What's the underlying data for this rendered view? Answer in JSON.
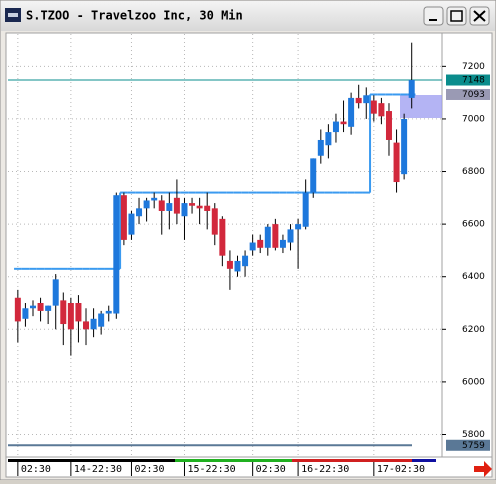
{
  "title": "S.TZOO - Travelzoo Inc, 30 Min",
  "chart_data": {
    "type": "candlestick",
    "up_color": "#1e78dc",
    "down_color": "#d2283c",
    "xlim": [
      -1.3,
      56
    ],
    "ylim": [
      5722,
      7323
    ],
    "yticks": [
      5800,
      6000,
      6200,
      6400,
      6600,
      6800,
      7000,
      7200
    ],
    "xticks": [
      {
        "value": 2,
        "label": "02:30"
      },
      {
        "value": 9,
        "label": "14-22:30"
      },
      {
        "value": 17,
        "label": "02:30"
      },
      {
        "value": 24,
        "label": "15-22:30"
      },
      {
        "value": 33,
        "label": "02:30"
      },
      {
        "value": 39,
        "label": "16-22:30"
      },
      {
        "value": 49,
        "label": "17-02:30"
      }
    ],
    "grid": true,
    "open": [
      6320,
      6240,
      6280,
      6300,
      6270,
      6290,
      6310,
      6300,
      6300,
      6230,
      6200,
      6210,
      6260,
      6260,
      6710,
      6560,
      6630,
      6660,
      6690,
      6690,
      6650,
      6700,
      6630,
      6680,
      6670,
      6670,
      6660,
      6620,
      6460,
      6420,
      6440,
      6500,
      6540,
      6510,
      6600,
      6510,
      6530,
      6580,
      6590,
      6720,
      6860,
      6900,
      6950,
      6990,
      6970,
      7080,
      7060,
      7070,
      7060,
      7030,
      6910,
      6790,
      7080
    ],
    "high": [
      6350,
      6300,
      6310,
      6320,
      6290,
      6410,
      6340,
      6320,
      6330,
      6280,
      6280,
      6270,
      6290,
      6720,
      6720,
      6650,
      6700,
      6700,
      6720,
      6710,
      6720,
      6770,
      6700,
      6700,
      6700,
      6720,
      6680,
      6630,
      6500,
      6480,
      6500,
      6560,
      6560,
      6600,
      6620,
      6560,
      6600,
      6620,
      6770,
      6850,
      6960,
      6980,
      7020,
      7070,
      7100,
      7130,
      7120,
      7090,
      7080,
      7060,
      6960,
      7020,
      7290
    ],
    "low": [
      6150,
      6210,
      6250,
      6230,
      6220,
      6200,
      6140,
      6100,
      6150,
      6140,
      6170,
      6180,
      6230,
      6240,
      6520,
      6540,
      6600,
      6610,
      6660,
      6560,
      6580,
      6600,
      6540,
      6640,
      6600,
      6580,
      6520,
      6440,
      6350,
      6400,
      6400,
      6480,
      6490,
      6480,
      6500,
      6490,
      6500,
      6430,
      6580,
      6700,
      6830,
      6850,
      6910,
      6950,
      6940,
      7040,
      7000,
      6990,
      6980,
      6860,
      6720,
      6770,
      7040
    ],
    "close": [
      6230,
      6280,
      6290,
      6270,
      6290,
      6390,
      6220,
      6200,
      6230,
      6200,
      6240,
      6260,
      6270,
      6710,
      6540,
      6640,
      6660,
      6690,
      6700,
      6650,
      6680,
      6640,
      6680,
      6670,
      6660,
      6650,
      6560,
      6480,
      6430,
      6460,
      6480,
      6530,
      6510,
      6590,
      6510,
      6540,
      6580,
      6600,
      6720,
      6850,
      6920,
      6950,
      6990,
      6980,
      7080,
      7060,
      7090,
      7020,
      7010,
      6920,
      6760,
      7000,
      7148
    ],
    "stop_line": {
      "color": "#3a9af0",
      "values": [
        6430,
        6430,
        6430,
        6430,
        6430,
        6430,
        6430,
        6430,
        6430,
        6430,
        6430,
        6430,
        6430,
        6430,
        6720,
        6720,
        6720,
        6720,
        6720,
        6720,
        6720,
        6720,
        6720,
        6720,
        6720,
        6720,
        6720,
        6720,
        6720,
        6720,
        6720,
        6720,
        6720,
        6720,
        6720,
        6720,
        6720,
        6720,
        6720,
        6720,
        6720,
        6720,
        6720,
        6720,
        6720,
        6720,
        6720,
        7093,
        7093,
        7093,
        7093,
        7093,
        7093
      ]
    },
    "price_lines": [
      {
        "value": 7148,
        "color": "#0a8c8c"
      },
      {
        "value": 7093,
        "color": "#9a9ab4"
      },
      {
        "value": 5759,
        "color": "#5a7896"
      }
    ]
  }
}
